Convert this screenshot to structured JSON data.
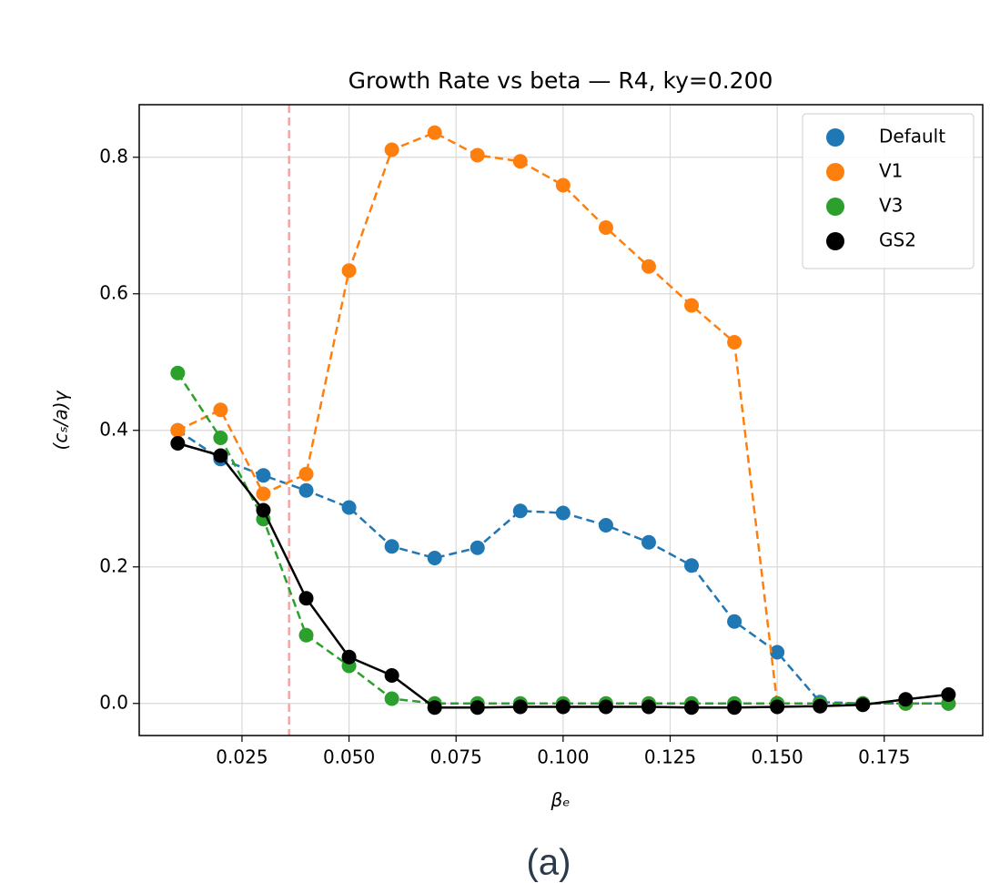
{
  "chart_data": {
    "type": "line",
    "title": "Growth Rate vs beta — R4, ky=0.200",
    "xlabel": "βₑ",
    "ylabel": "(cₛ/a)γ",
    "caption": "(a)",
    "x": [
      0.01,
      0.02,
      0.03,
      0.04,
      0.05,
      0.06,
      0.07,
      0.08,
      0.09,
      0.1,
      0.11,
      0.12,
      0.13,
      0.14,
      0.15,
      0.16,
      0.17,
      0.18,
      0.19
    ],
    "series": [
      {
        "name": "Default",
        "color": "#1f77b4",
        "dashed": true,
        "values": [
          0.4,
          0.358,
          0.334,
          0.312,
          0.287,
          0.23,
          0.213,
          0.228,
          0.282,
          0.279,
          0.261,
          0.236,
          0.202,
          0.12,
          0.075,
          0.002,
          0.0,
          0.0,
          0.0
        ]
      },
      {
        "name": "V1",
        "color": "#ff7f0e",
        "dashed": true,
        "values": [
          0.4,
          0.43,
          0.307,
          0.336,
          0.634,
          0.811,
          0.836,
          0.803,
          0.794,
          0.759,
          0.697,
          0.64,
          0.583,
          0.529,
          0.0,
          0.0,
          0.0,
          0.0,
          0.0
        ]
      },
      {
        "name": "V3",
        "color": "#2ca02c",
        "dashed": true,
        "values": [
          0.484,
          0.389,
          0.27,
          0.1,
          0.055,
          0.007,
          0.0,
          0.0,
          0.0,
          0.0,
          0.0,
          0.0,
          0.0,
          0.0,
          0.0,
          0.0,
          0.0,
          0.0,
          0.0
        ]
      },
      {
        "name": "GS2",
        "color": "#000000",
        "dashed": false,
        "values": [
          0.381,
          0.363,
          0.283,
          0.154,
          0.068,
          0.041,
          -0.006,
          -0.006,
          -0.005,
          -0.005,
          -0.005,
          -0.005,
          -0.006,
          -0.006,
          -0.005,
          -0.004,
          -0.002,
          0.006,
          0.013
        ]
      }
    ],
    "vline": 0.036,
    "vline_color": "#f4a6a6",
    "xlim": [
      0.001,
      0.198
    ],
    "ylim": [
      -0.047,
      0.877
    ],
    "xticks": [
      {
        "value": 0.025,
        "label": "0.025"
      },
      {
        "value": 0.05,
        "label": "0.050"
      },
      {
        "value": 0.075,
        "label": "0.075"
      },
      {
        "value": 0.1,
        "label": "0.100"
      },
      {
        "value": 0.125,
        "label": "0.125"
      },
      {
        "value": 0.15,
        "label": "0.150"
      },
      {
        "value": 0.175,
        "label": "0.175"
      }
    ],
    "yticks": [
      {
        "value": 0,
        "label": "0.0"
      },
      0.2,
      0.4,
      0.6,
      0.8
    ],
    "grid": true,
    "legend": "upper right"
  }
}
